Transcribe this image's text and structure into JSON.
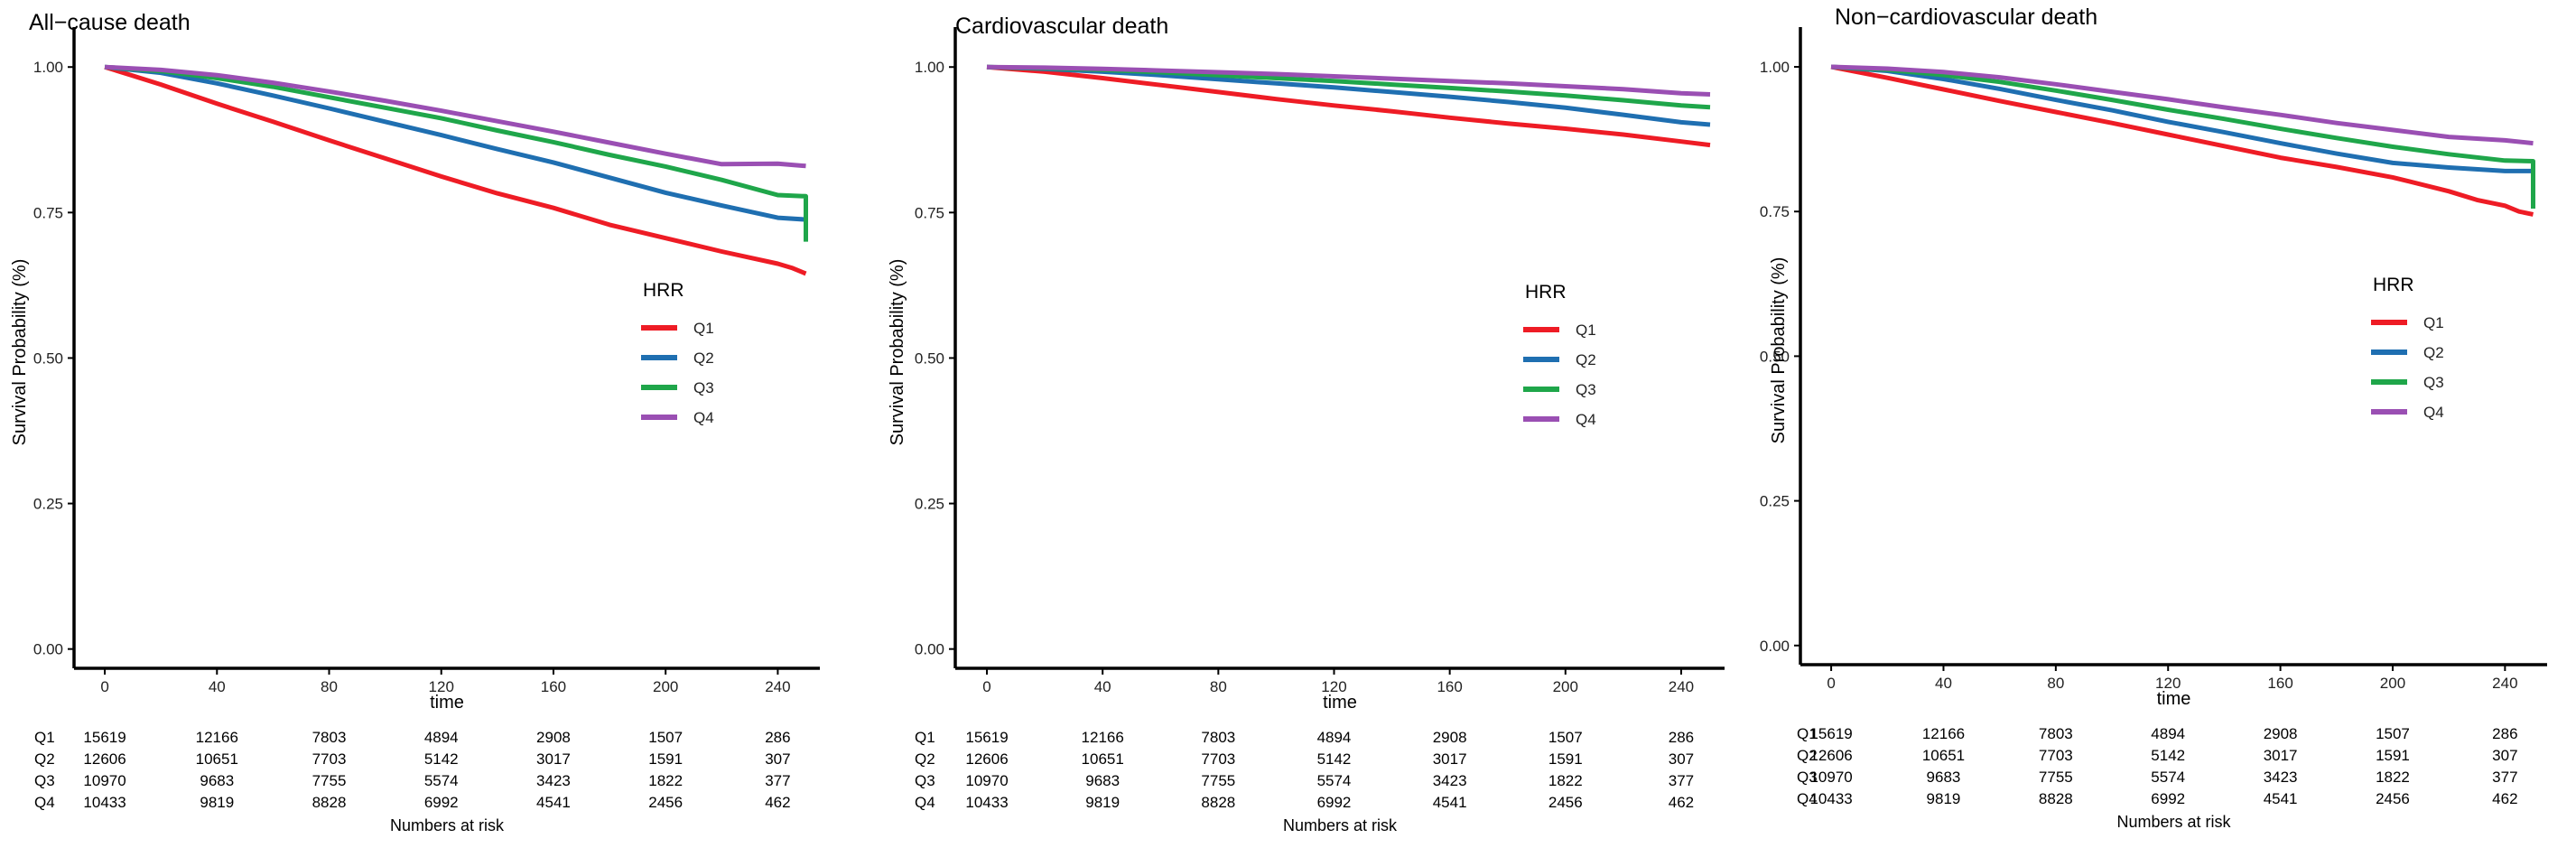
{
  "colors": {
    "Q1": "#ee1c25",
    "Q2": "#1f6fb1",
    "Q3": "#1fa64a",
    "Q4": "#9a4fb3",
    "axis": "#000000",
    "text": "#222222"
  },
  "chart_data": [
    {
      "type": "line",
      "title": "All−cause death",
      "xlabel": "time",
      "ylabel": "Survival Probability (%)",
      "xlim": [
        -10,
        255
      ],
      "ylim": [
        -0.03,
        1.05
      ],
      "xticks": [
        "0",
        "40",
        "80",
        "120",
        "160",
        "200",
        "240"
      ],
      "yticks": [
        "0.00",
        "0.25",
        "0.50",
        "0.75",
        "1.00"
      ],
      "legend_title": "HRR",
      "legend_position": "right",
      "series": [
        {
          "name": "Q1",
          "color": "#ee1c25",
          "x": [
            0,
            10,
            20,
            40,
            60,
            80,
            100,
            120,
            140,
            160,
            180,
            200,
            220,
            240,
            245,
            250
          ],
          "y": [
            1,
            0.985,
            0.97,
            0.937,
            0.906,
            0.874,
            0.843,
            0.812,
            0.783,
            0.758,
            0.729,
            0.706,
            0.683,
            0.662,
            0.655,
            0.645
          ]
        },
        {
          "name": "Q2",
          "color": "#1f6fb1",
          "x": [
            0,
            20,
            40,
            60,
            80,
            100,
            120,
            140,
            160,
            180,
            200,
            220,
            240,
            250
          ],
          "y": [
            1,
            0.99,
            0.972,
            0.951,
            0.929,
            0.906,
            0.883,
            0.859,
            0.836,
            0.81,
            0.784,
            0.762,
            0.741,
            0.738
          ]
        },
        {
          "name": "Q3",
          "color": "#1fa64a",
          "x": [
            0,
            20,
            40,
            60,
            80,
            100,
            120,
            140,
            160,
            180,
            200,
            220,
            240,
            250,
            250
          ],
          "y": [
            1,
            0.993,
            0.981,
            0.966,
            0.948,
            0.93,
            0.912,
            0.891,
            0.871,
            0.849,
            0.829,
            0.806,
            0.78,
            0.778,
            0.7
          ]
        },
        {
          "name": "Q4",
          "color": "#9a4fb3",
          "x": [
            0,
            20,
            40,
            60,
            80,
            100,
            120,
            140,
            160,
            180,
            200,
            220,
            240,
            250
          ],
          "y": [
            1,
            0.995,
            0.986,
            0.973,
            0.958,
            0.942,
            0.925,
            0.907,
            0.889,
            0.87,
            0.851,
            0.833,
            0.834,
            0.83
          ]
        }
      ],
      "risk_table": {
        "label": "Numbers at risk",
        "time_points": [
          0,
          40,
          80,
          120,
          160,
          200,
          240
        ],
        "rows": [
          {
            "name": "Q1",
            "values": [
              "15619",
              "12166",
              "7803",
              "4894",
              "2908",
              "1507",
              "286"
            ]
          },
          {
            "name": "Q2",
            "values": [
              "12606",
              "10651",
              "7703",
              "5142",
              "3017",
              "1591",
              "307"
            ]
          },
          {
            "name": "Q3",
            "values": [
              "10970",
              "9683",
              "7755",
              "5574",
              "3423",
              "1822",
              "377"
            ]
          },
          {
            "name": "Q4",
            "values": [
              "10433",
              "9819",
              "8828",
              "6992",
              "4541",
              "2456",
              "462"
            ]
          }
        ]
      }
    },
    {
      "type": "line",
      "title": "Cardiovascular death",
      "xlabel": "time",
      "ylabel": "Survival Probability (%)",
      "xlim": [
        -10,
        255
      ],
      "ylim": [
        -0.03,
        1.05
      ],
      "xticks": [
        "0",
        "40",
        "80",
        "120",
        "160",
        "200",
        "240"
      ],
      "yticks": [
        "0.00",
        "0.25",
        "0.50",
        "0.75",
        "1.00"
      ],
      "legend_title": "HRR",
      "legend_position": "right",
      "series": [
        {
          "name": "Q1",
          "color": "#ee1c25",
          "x": [
            0,
            20,
            40,
            60,
            80,
            100,
            120,
            140,
            160,
            180,
            200,
            220,
            240,
            250
          ],
          "y": [
            1,
            0.992,
            0.981,
            0.969,
            0.957,
            0.945,
            0.934,
            0.924,
            0.913,
            0.903,
            0.894,
            0.884,
            0.872,
            0.866
          ]
        },
        {
          "name": "Q2",
          "color": "#1f6fb1",
          "x": [
            0,
            20,
            40,
            60,
            80,
            100,
            120,
            140,
            160,
            180,
            200,
            220,
            240,
            250
          ],
          "y": [
            1,
            0.997,
            0.992,
            0.986,
            0.979,
            0.972,
            0.965,
            0.957,
            0.949,
            0.94,
            0.93,
            0.918,
            0.905,
            0.901
          ]
        },
        {
          "name": "Q3",
          "color": "#1fa64a",
          "x": [
            0,
            20,
            40,
            60,
            80,
            100,
            120,
            140,
            160,
            180,
            200,
            220,
            240,
            250
          ],
          "y": [
            1,
            0.998,
            0.995,
            0.991,
            0.986,
            0.981,
            0.976,
            0.97,
            0.964,
            0.958,
            0.951,
            0.943,
            0.934,
            0.931
          ]
        },
        {
          "name": "Q4",
          "color": "#9a4fb3",
          "x": [
            0,
            20,
            40,
            60,
            80,
            100,
            120,
            140,
            160,
            180,
            200,
            220,
            240,
            250
          ],
          "y": [
            1,
            0.999,
            0.997,
            0.994,
            0.991,
            0.988,
            0.984,
            0.98,
            0.976,
            0.972,
            0.967,
            0.962,
            0.955,
            0.953
          ]
        }
      ],
      "risk_table": {
        "label": "Numbers at risk",
        "time_points": [
          0,
          40,
          80,
          120,
          160,
          200,
          240
        ],
        "rows": [
          {
            "name": "Q1",
            "values": [
              "15619",
              "12166",
              "7803",
              "4894",
              "2908",
              "1507",
              "286"
            ]
          },
          {
            "name": "Q2",
            "values": [
              "12606",
              "10651",
              "7703",
              "5142",
              "3017",
              "1591",
              "307"
            ]
          },
          {
            "name": "Q3",
            "values": [
              "10970",
              "9683",
              "7755",
              "5574",
              "3423",
              "1822",
              "377"
            ]
          },
          {
            "name": "Q4",
            "values": [
              "10433",
              "9819",
              "8828",
              "6992",
              "4541",
              "2456",
              "462"
            ]
          }
        ]
      }
    },
    {
      "type": "line",
      "title": "Non−cardiovascular death",
      "xlabel": "time",
      "ylabel": "Survival Probability (%)",
      "xlim": [
        -10,
        255
      ],
      "ylim": [
        -0.03,
        1.05
      ],
      "xticks": [
        "0",
        "40",
        "80",
        "120",
        "160",
        "200",
        "240"
      ],
      "yticks": [
        "0.00",
        "0.25",
        "0.50",
        "0.75",
        "1.00"
      ],
      "legend_title": "HRR",
      "legend_position": "right",
      "series": [
        {
          "name": "Q1",
          "color": "#ee1c25",
          "x": [
            0,
            20,
            40,
            60,
            80,
            100,
            120,
            140,
            160,
            180,
            200,
            220,
            230,
            240,
            245,
            250
          ],
          "y": [
            1,
            0.981,
            0.961,
            0.941,
            0.922,
            0.903,
            0.883,
            0.863,
            0.843,
            0.827,
            0.809,
            0.785,
            0.77,
            0.76,
            0.75,
            0.745
          ]
        },
        {
          "name": "Q2",
          "color": "#1f6fb1",
          "x": [
            0,
            20,
            40,
            60,
            80,
            100,
            120,
            140,
            160,
            180,
            200,
            220,
            240,
            250
          ],
          "y": [
            1,
            0.993,
            0.979,
            0.962,
            0.943,
            0.925,
            0.905,
            0.887,
            0.868,
            0.85,
            0.834,
            0.826,
            0.82,
            0.82
          ]
        },
        {
          "name": "Q3",
          "color": "#1fa64a",
          "x": [
            0,
            20,
            40,
            60,
            80,
            100,
            120,
            140,
            160,
            180,
            200,
            220,
            240,
            250,
            250
          ],
          "y": [
            1,
            0.995,
            0.986,
            0.974,
            0.959,
            0.943,
            0.926,
            0.91,
            0.893,
            0.877,
            0.862,
            0.849,
            0.838,
            0.837,
            0.755
          ]
        },
        {
          "name": "Q4",
          "color": "#9a4fb3",
          "x": [
            0,
            20,
            40,
            60,
            80,
            100,
            120,
            140,
            160,
            180,
            200,
            220,
            240,
            250
          ],
          "y": [
            1,
            0.997,
            0.991,
            0.982,
            0.97,
            0.957,
            0.944,
            0.93,
            0.917,
            0.903,
            0.891,
            0.879,
            0.873,
            0.868
          ]
        }
      ],
      "risk_table": {
        "label": "Numbers at risk",
        "time_points": [
          0,
          40,
          80,
          120,
          160,
          200,
          240
        ],
        "rows": [
          {
            "name": "Q1",
            "values": [
              "15619",
              "12166",
              "7803",
              "4894",
              "2908",
              "1507",
              "286"
            ]
          },
          {
            "name": "Q2",
            "values": [
              "12606",
              "10651",
              "7703",
              "5142",
              "3017",
              "1591",
              "307"
            ]
          },
          {
            "name": "Q3",
            "values": [
              "10970",
              "9683",
              "7755",
              "5574",
              "3423",
              "1822",
              "377"
            ]
          },
          {
            "name": "Q4",
            "values": [
              "10433",
              "9819",
              "8828",
              "6992",
              "4541",
              "2456",
              "462"
            ]
          }
        ]
      }
    }
  ]
}
